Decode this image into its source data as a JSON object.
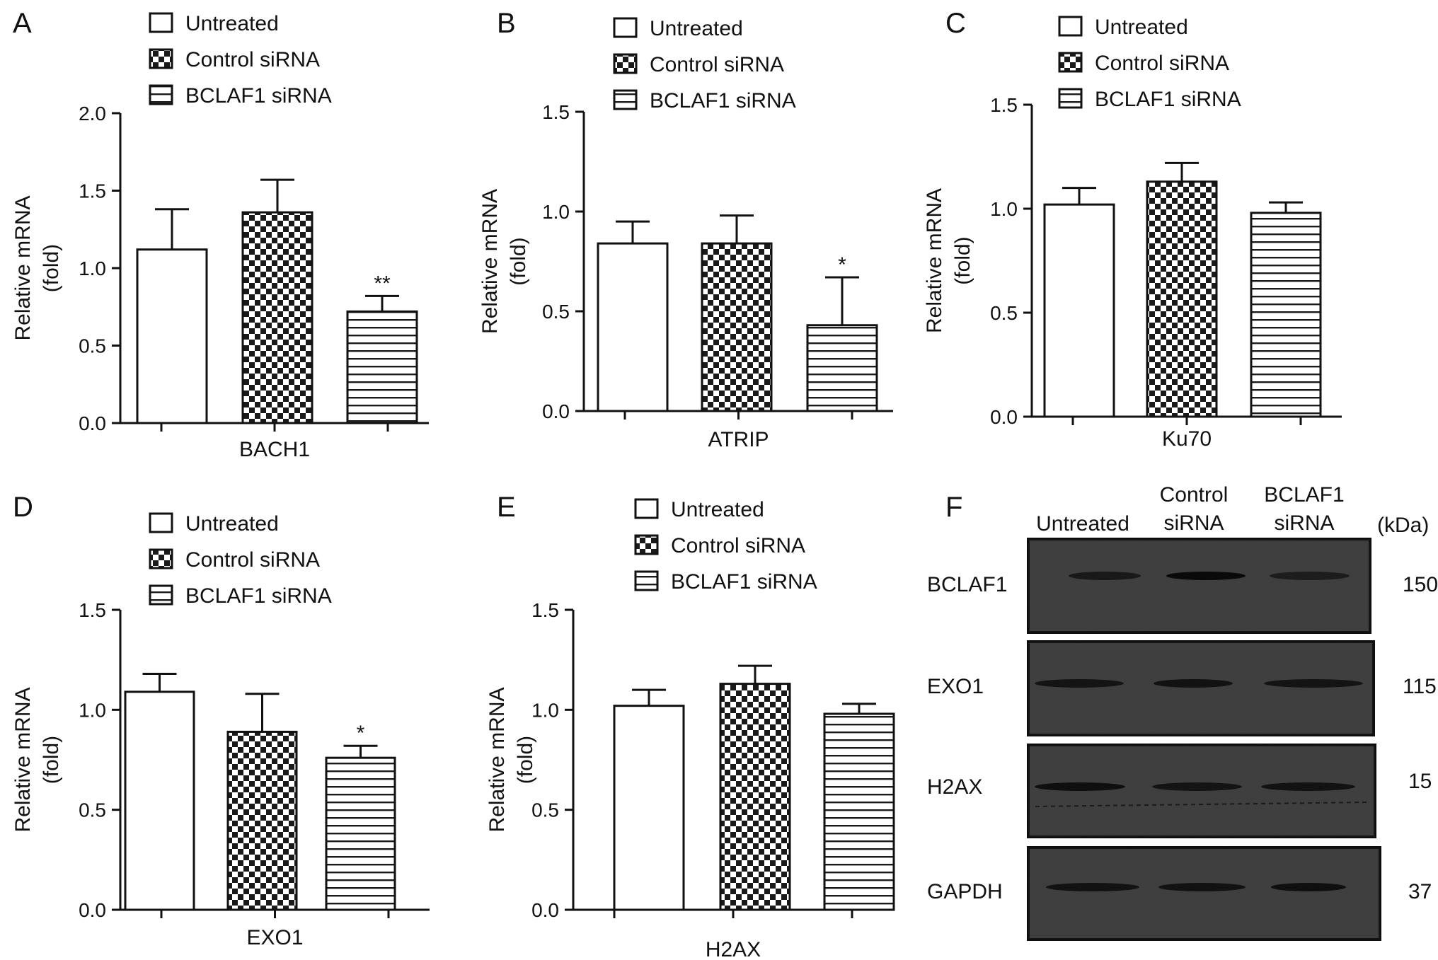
{
  "figure": {
    "legend_entries": [
      "Untreated",
      "Control siRNA",
      "BCLAF1 siRNA"
    ],
    "ylabel_line1": "Relative mRNA",
    "ylabel_line2": "(fold)"
  },
  "chart_data": [
    {
      "panel": "A",
      "type": "bar",
      "xlabel": "BACH1",
      "ylabel": "Relative mRNA (fold)",
      "ylim": [
        0,
        2.0
      ],
      "yticks": [
        "0.0",
        "0.5",
        "1.0",
        "1.5",
        "2.0"
      ],
      "categories": [
        "Untreated",
        "Control siRNA",
        "BCLAF1 siRNA"
      ],
      "values": [
        1.12,
        1.36,
        0.72
      ],
      "errors": [
        0.26,
        0.21,
        0.1
      ],
      "significance": [
        "",
        "",
        "**"
      ],
      "legend_position": "top"
    },
    {
      "panel": "B",
      "type": "bar",
      "xlabel": "ATRIP",
      "ylabel": "Relative mRNA (fold)",
      "ylim": [
        0,
        1.5
      ],
      "yticks": [
        "0.0",
        "0.5",
        "1.0",
        "1.5"
      ],
      "categories": [
        "Untreated",
        "Control siRNA",
        "BCLAF1 siRNA"
      ],
      "values": [
        0.84,
        0.84,
        0.43
      ],
      "errors": [
        0.11,
        0.14,
        0.24
      ],
      "significance": [
        "",
        "",
        "*"
      ],
      "legend_position": "top"
    },
    {
      "panel": "C",
      "type": "bar",
      "xlabel": "Ku70",
      "ylabel": "Relative mRNA (fold)",
      "ylim": [
        0,
        1.5
      ],
      "yticks": [
        "0.0",
        "0.5",
        "1.0",
        "1.5"
      ],
      "categories": [
        "Untreated",
        "Control siRNA",
        "BCLAF1 siRNA"
      ],
      "values": [
        1.02,
        1.13,
        0.98
      ],
      "errors": [
        0.08,
        0.09,
        0.05
      ],
      "significance": [
        "",
        "",
        ""
      ],
      "legend_position": "top"
    },
    {
      "panel": "D",
      "type": "bar",
      "xlabel": "EXO1",
      "ylabel": "Relative mRNA (fold)",
      "ylim": [
        0,
        1.5
      ],
      "yticks": [
        "0.0",
        "0.5",
        "1.0",
        "1.5"
      ],
      "categories": [
        "Untreated",
        "Control siRNA",
        "BCLAF1 siRNA"
      ],
      "values": [
        1.09,
        0.89,
        0.76
      ],
      "errors": [
        0.09,
        0.19,
        0.06
      ],
      "significance": [
        "",
        "",
        "*"
      ],
      "legend_position": "top"
    },
    {
      "panel": "E",
      "type": "bar",
      "xlabel": "H2AX",
      "ylabel": "Relative mRNA (fold)",
      "ylim": [
        0,
        1.5
      ],
      "yticks": [
        "0.0",
        "0.5",
        "1.0",
        "1.5"
      ],
      "categories": [
        "Untreated",
        "Control siRNA",
        "BCLAF1 siRNA"
      ],
      "values": [
        1.02,
        1.13,
        0.98
      ],
      "errors": [
        0.08,
        0.09,
        0.05
      ],
      "significance": [
        "",
        "",
        ""
      ],
      "legend_position": "top"
    }
  ],
  "western_blot": {
    "panel": "F",
    "lane_headers": [
      [
        "Untreated"
      ],
      [
        "Control",
        "siRNA"
      ],
      [
        "BCLAF1",
        "siRNA"
      ]
    ],
    "unit_label": "(kDa)",
    "rows": [
      {
        "protein": "BCLAF1",
        "kda": "150"
      },
      {
        "protein": "EXO1",
        "kda": "115"
      },
      {
        "protein": "H2AX",
        "kda": "15"
      },
      {
        "protein": "GAPDH",
        "kda": "37"
      }
    ]
  }
}
